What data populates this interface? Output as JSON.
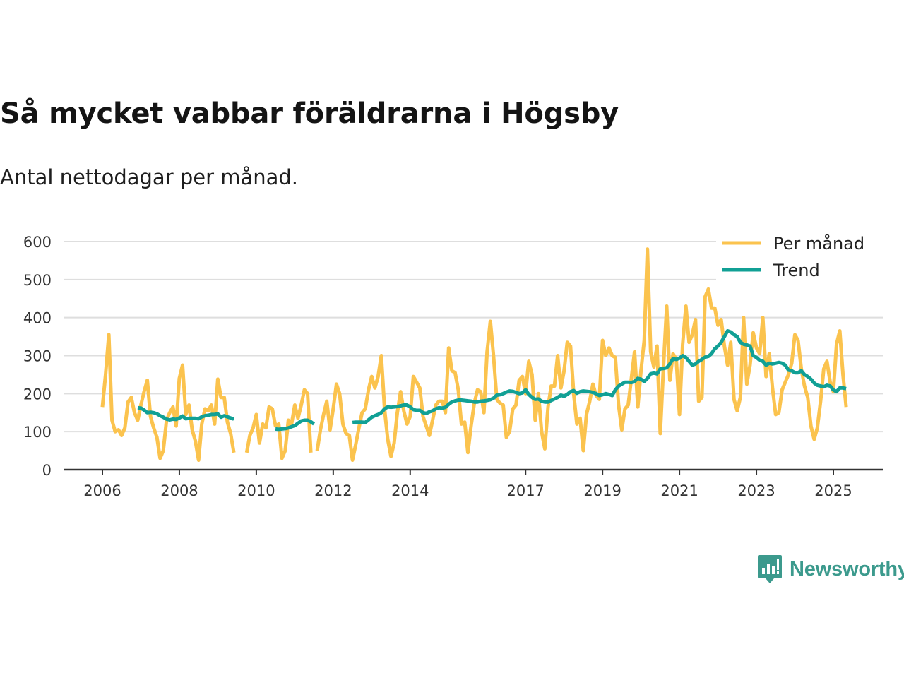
{
  "header": {
    "title": "Så mycket vabbar föräldrarna i Högsby",
    "subtitle": "Antal nettodagar per månad."
  },
  "brand": {
    "name": "Newsworthy",
    "icon": "newsworthy-logo-icon"
  },
  "colors": {
    "monthly": "#fbc34e",
    "trend": "#11a095",
    "grid": "#dedede",
    "axis": "#333333",
    "brand": "#3c9a8d"
  },
  "chart_data": {
    "type": "line",
    "title": "Så mycket vabbar föräldrarna i Högsby",
    "subtitle": "Antal nettodagar per månad.",
    "xlabel": "",
    "ylabel": "",
    "ylim": [
      0,
      600
    ],
    "xlim": [
      2005.7,
      2026.5
    ],
    "yticks": [
      0,
      100,
      200,
      300,
      400,
      500,
      600
    ],
    "xticks": [
      2006,
      2008,
      2010,
      2012,
      2014,
      2017,
      2019,
      2021,
      2023,
      2025
    ],
    "grid": true,
    "legend": "top-right",
    "series": [
      {
        "name": "Per månad",
        "color": "#fbc34e",
        "segments": [
          {
            "x": [
              2006.0,
              2006.083,
              2006.167,
              2006.25,
              2006.333,
              2006.417,
              2006.5,
              2006.583,
              2006.667,
              2006.75,
              2006.833,
              2006.917,
              2007.0,
              2007.083,
              2007.167,
              2007.25,
              2007.333,
              2007.417,
              2007.5,
              2007.583,
              2007.667,
              2007.75,
              2007.833,
              2007.917,
              2008.0,
              2008.083,
              2008.167,
              2008.25,
              2008.333,
              2008.417,
              2008.5,
              2008.583,
              2008.667,
              2008.75,
              2008.833,
              2008.917,
              2009.0,
              2009.083,
              2009.167,
              2009.25,
              2009.333,
              2009.417
            ],
            "y": [
              165,
              250,
              355,
              130,
              100,
              105,
              90,
              110,
              178,
              190,
              150,
              130,
              170,
              205,
              235,
              140,
              110,
              85,
              30,
              50,
              130,
              150,
              165,
              115,
              240,
              275,
              145,
              170,
              105,
              75,
              25,
              120,
              160,
              155,
              170,
              120,
              238,
              190,
              190,
              125,
              95,
              45
            ]
          },
          {
            "x": [
              2009.75,
              2009.833,
              2009.917,
              2010.0,
              2010.083,
              2010.167,
              2010.25,
              2010.333,
              2010.417,
              2010.5,
              2010.583,
              2010.667,
              2010.75,
              2010.833,
              2010.917,
              2011.0,
              2011.083,
              2011.167,
              2011.25,
              2011.333,
              2011.417
            ],
            "y": [
              45,
              90,
              110,
              145,
              70,
              120,
              110,
              165,
              160,
              115,
              120,
              30,
              50,
              130,
              120,
              170,
              135,
              170,
              210,
              200,
              45
            ]
          },
          {
            "x": [
              2011.583,
              2011.667,
              2011.75,
              2011.833,
              2011.917,
              2012.0,
              2012.083,
              2012.167,
              2012.25,
              2012.333,
              2012.417,
              2012.5,
              2012.583,
              2012.667,
              2012.75,
              2012.833,
              2012.917,
              2013.0,
              2013.083,
              2013.167,
              2013.25,
              2013.333,
              2013.417,
              2013.5,
              2013.583,
              2013.667,
              2013.75,
              2013.833,
              2013.917,
              2014.0,
              2014.083,
              2014.167,
              2014.25,
              2014.333,
              2014.417,
              2014.5,
              2014.583,
              2014.667,
              2014.75,
              2014.833,
              2014.917,
              2015.0,
              2015.083,
              2015.167,
              2015.25,
              2015.333,
              2015.417,
              2015.5,
              2015.583,
              2015.667,
              2015.75,
              2015.833,
              2015.917,
              2016.0,
              2016.083,
              2016.167,
              2016.25,
              2016.333,
              2016.417,
              2016.5,
              2016.583,
              2016.667,
              2016.75,
              2016.833,
              2016.917,
              2017.0,
              2017.083,
              2017.167,
              2017.25,
              2017.333,
              2017.417,
              2017.5,
              2017.583,
              2017.667,
              2017.75,
              2017.833,
              2017.917,
              2018.0,
              2018.083,
              2018.167,
              2018.25,
              2018.333,
              2018.417,
              2018.5,
              2018.583,
              2018.667,
              2018.75,
              2018.833,
              2018.917,
              2019.0,
              2019.083,
              2019.167,
              2019.25,
              2019.333,
              2019.417,
              2019.5,
              2019.583,
              2019.667,
              2019.75,
              2019.833,
              2019.917,
              2020.0,
              2020.083,
              2020.167,
              2020.25,
              2020.333,
              2020.417,
              2020.5,
              2020.583,
              2020.667,
              2020.75,
              2020.833,
              2020.917,
              2021.0,
              2021.083,
              2021.167,
              2021.25,
              2021.333,
              2021.417,
              2021.5,
              2021.583,
              2021.667,
              2021.75,
              2021.833,
              2021.917,
              2022.0,
              2022.083,
              2022.167,
              2022.25,
              2022.333,
              2022.417,
              2022.5,
              2022.583,
              2022.667,
              2022.75,
              2022.833,
              2022.917,
              2023.0,
              2023.083,
              2023.167,
              2023.25,
              2023.333,
              2023.417,
              2023.5,
              2023.583,
              2023.667,
              2023.75,
              2023.833,
              2023.917,
              2024.0,
              2024.083,
              2024.167,
              2024.25,
              2024.333,
              2024.417,
              2024.5,
              2024.583,
              2024.667,
              2024.75,
              2024.833,
              2024.917,
              2025.0,
              2025.083,
              2025.167,
              2025.25,
              2025.333
            ],
            "y": [
              50,
              105,
              145,
              180,
              105,
              160,
              225,
              200,
              120,
              95,
              90,
              25,
              65,
              110,
              150,
              160,
              210,
              245,
              215,
              245,
              300,
              160,
              80,
              35,
              70,
              150,
              205,
              155,
              120,
              140,
              245,
              230,
              215,
              140,
              115,
              90,
              130,
              170,
              180,
              180,
              150,
              320,
              260,
              255,
              210,
              120,
              125,
              45,
              115,
              175,
              210,
              205,
              150,
              310,
              390,
              300,
              185,
              175,
              170,
              85,
              100,
              160,
              170,
              235,
              245,
              200,
              285,
              250,
              130,
              200,
              100,
              55,
              165,
              220,
              220,
              300,
              215,
              260,
              335,
              325,
              200,
              120,
              135,
              50,
              145,
              180,
              225,
              195,
              185,
              340,
              300,
              320,
              300,
              295,
              170,
              105,
              160,
              170,
              240,
              310,
              165,
              260,
              340,
              580,
              310,
              270,
              325,
              95,
              270,
              430,
              235,
              305,
              290,
              145,
              330,
              430,
              335,
              355,
              395,
              180,
              190,
              455,
              475,
              425,
              425,
              380,
              395,
              325,
              275,
              335,
              185,
              155,
              190,
              400,
              225,
              275,
              360,
              320,
              305,
              400,
              245,
              305,
              215,
              145,
              150,
              210,
              230,
              250,
              280,
              355,
              340,
              265,
              220,
              190,
              115,
              80,
              110,
              180,
              265,
              285,
              230,
              205,
              330,
              365,
              250,
              165
            ]
          }
        ]
      },
      {
        "name": "Trend",
        "color": "#11a095",
        "segments": [
          {
            "x": [
              2006.917,
              2007.0,
              2007.083,
              2007.167,
              2007.25,
              2007.333,
              2007.417,
              2007.5,
              2007.583,
              2007.667,
              2007.75,
              2007.833,
              2007.917,
              2008.0,
              2008.083,
              2008.167,
              2008.25,
              2008.333,
              2008.417,
              2008.5,
              2008.583,
              2008.667,
              2008.75,
              2008.833,
              2008.917,
              2009.0,
              2009.083,
              2009.167,
              2009.25,
              2009.333,
              2009.417
            ],
            "y": [
              163,
              162,
              157,
              150,
              151,
              150,
              147,
              142,
              138,
              133,
              131,
              133,
              132,
              136,
              141,
              134,
              135,
              135,
              135,
              134,
              139,
              142,
              143,
              145,
              145,
              147,
              138,
              142,
              139,
              136,
              133
            ]
          },
          {
            "x": [
              2010.5,
              2010.583,
              2010.667,
              2010.75,
              2010.833,
              2010.917,
              2011.0,
              2011.083,
              2011.167,
              2011.25,
              2011.333,
              2011.417,
              2011.5
            ],
            "y": [
              107,
              106,
              107,
              108,
              110,
              113,
              116,
              122,
              128,
              130,
              130,
              126,
              120
            ]
          },
          {
            "x": [
              2012.5,
              2012.583,
              2012.667,
              2012.75,
              2012.833,
              2012.917,
              2013.0,
              2013.083,
              2013.167,
              2013.25,
              2013.333,
              2013.417,
              2013.5,
              2013.583,
              2013.667,
              2013.75,
              2013.833,
              2013.917,
              2014.0,
              2014.083,
              2014.167,
              2014.25,
              2014.333,
              2014.417,
              2014.5,
              2014.583,
              2014.667,
              2014.75,
              2014.833,
              2014.917,
              2015.0,
              2015.083,
              2015.167,
              2015.25,
              2015.333,
              2015.417,
              2015.5,
              2015.583,
              2015.667,
              2015.75,
              2015.833,
              2015.917,
              2016.0,
              2016.083,
              2016.167,
              2016.25,
              2016.333,
              2016.417,
              2016.5,
              2016.583,
              2016.667,
              2016.75,
              2016.833,
              2016.917,
              2017.0,
              2017.083,
              2017.167,
              2017.25,
              2017.333,
              2017.417,
              2017.5,
              2017.583,
              2017.667,
              2017.75,
              2017.833,
              2017.917,
              2018.0,
              2018.083,
              2018.167,
              2018.25,
              2018.333,
              2018.417,
              2018.5,
              2018.583,
              2018.667,
              2018.75,
              2018.833,
              2018.917,
              2019.0,
              2019.083,
              2019.167,
              2019.25,
              2019.333,
              2019.417,
              2019.5,
              2019.583,
              2019.667,
              2019.75,
              2019.833,
              2019.917,
              2020.0,
              2020.083,
              2020.167,
              2020.25,
              2020.333,
              2020.417,
              2020.5,
              2020.583,
              2020.667,
              2020.75,
              2020.833,
              2020.917,
              2021.0,
              2021.083,
              2021.167,
              2021.25,
              2021.333,
              2021.417,
              2021.5,
              2021.583,
              2021.667,
              2021.75,
              2021.833,
              2021.917,
              2022.0,
              2022.083,
              2022.167,
              2022.25,
              2022.333,
              2022.417,
              2022.5,
              2022.583,
              2022.667,
              2022.75,
              2022.833,
              2022.917,
              2023.0,
              2023.083,
              2023.167,
              2023.25,
              2023.333,
              2023.417,
              2023.5,
              2023.583,
              2023.667,
              2023.75,
              2023.833,
              2023.917,
              2024.0,
              2024.083,
              2024.167,
              2024.25,
              2024.333,
              2024.417,
              2024.5,
              2024.583,
              2024.667,
              2024.75,
              2024.833,
              2024.917,
              2025.0,
              2025.083,
              2025.167,
              2025.25,
              2025.333
            ],
            "y": [
              124,
              125,
              125,
              125,
              124,
              131,
              138,
              142,
              145,
              150,
              160,
              165,
              164,
              165,
              166,
              168,
              170,
              170,
              165,
              158,
              156,
              156,
              150,
              148,
              152,
              155,
              160,
              163,
              162,
              164,
              172,
              178,
              181,
              183,
              183,
              182,
              181,
              180,
              178,
              178,
              180,
              181,
              182,
              184,
              188,
              196,
              197,
              200,
              204,
              207,
              206,
              203,
              200,
              202,
              210,
              198,
              190,
              185,
              186,
              180,
              178,
              178,
              182,
              186,
              190,
              196,
              193,
              198,
              205,
              208,
              201,
              205,
              207,
              206,
              205,
              203,
              200,
              195,
              197,
              200,
              198,
              195,
              210,
              220,
              225,
              230,
              230,
              229,
              232,
              240,
              238,
              232,
              240,
              252,
              254,
              252,
              265,
              266,
              268,
              278,
              292,
              290,
              293,
              300,
              295,
              285,
              275,
              278,
              285,
              290,
              296,
              298,
              305,
              318,
              325,
              335,
              350,
              365,
              362,
              355,
              350,
              335,
              330,
              328,
              325,
              300,
              295,
              288,
              285,
              275,
              280,
              278,
              280,
              282,
              280,
              275,
              262,
              260,
              255,
              255,
              260,
              250,
              245,
              238,
              228,
              222,
              220,
              218,
              222,
              220,
              210,
              205,
              215,
              215,
              213
            ]
          }
        ]
      }
    ],
    "legend_entries": [
      "Per månad",
      "Trend"
    ]
  }
}
